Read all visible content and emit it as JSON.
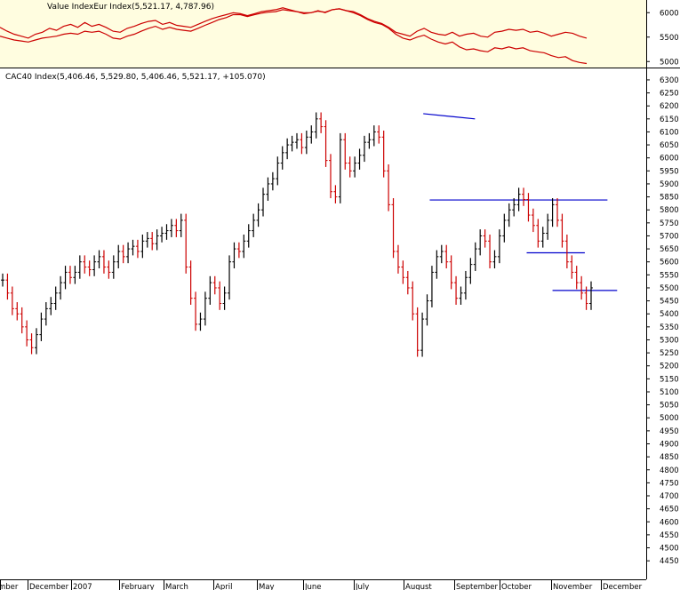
{
  "chart_data": [
    {
      "type": "line",
      "title": "Value IndexEur Index(5,521.17, 4,787.96)",
      "ylim": [
        4950,
        6150
      ],
      "y_ticks": [
        6000,
        5500,
        5000
      ],
      "background": "#fffde0",
      "series": [
        {
          "color": "#cc0000",
          "values": [
            5700,
            5620,
            5560,
            5520,
            5480,
            5560,
            5600,
            5680,
            5640,
            5720,
            5760,
            5700,
            5800,
            5720,
            5760,
            5700,
            5620,
            5600,
            5680,
            5720,
            5780,
            5820,
            5840,
            5760,
            5800,
            5740,
            5720,
            5700,
            5760,
            5820,
            5880,
            5920,
            5960,
            6000,
            5980,
            5940,
            5980,
            6020,
            6040,
            6060,
            6100,
            6060,
            6020,
            5980,
            6000,
            6040,
            6000,
            6060,
            6080,
            6040,
            6020,
            5960,
            5880,
            5820,
            5780,
            5700,
            5600,
            5560,
            5520,
            5620,
            5680,
            5600,
            5560,
            5540,
            5600,
            5520,
            5560,
            5580,
            5520,
            5500,
            5600,
            5620,
            5660,
            5640,
            5660,
            5600,
            5620,
            5580,
            5520,
            5560,
            5600,
            5580,
            5520,
            5480
          ]
        },
        {
          "color": "#cc0000",
          "values": [
            5520,
            5480,
            5440,
            5420,
            5400,
            5440,
            5480,
            5500,
            5520,
            5560,
            5580,
            5560,
            5620,
            5600,
            5620,
            5560,
            5480,
            5460,
            5520,
            5560,
            5620,
            5680,
            5720,
            5660,
            5700,
            5660,
            5640,
            5620,
            5680,
            5740,
            5800,
            5860,
            5900,
            5960,
            5960,
            5920,
            5960,
            5990,
            6010,
            6020,
            6060,
            6040,
            6020,
            6000,
            6000,
            6030,
            6010,
            6060,
            6080,
            6040,
            6000,
            5940,
            5860,
            5800,
            5760,
            5680,
            5560,
            5480,
            5440,
            5500,
            5540,
            5460,
            5400,
            5360,
            5400,
            5300,
            5240,
            5260,
            5220,
            5200,
            5280,
            5260,
            5300,
            5260,
            5280,
            5220,
            5200,
            5180,
            5120,
            5080,
            5100,
            5020,
            4980,
            4960
          ]
        }
      ]
    },
    {
      "type": "candlestick",
      "title": "CAC40 Index(5,406.46, 5,529.80, 5,406.46, 5,521.17, +105.070)",
      "ylim": [
        4430,
        6310
      ],
      "y_ticks": [
        6300,
        6250,
        6200,
        6150,
        6100,
        6050,
        6000,
        5950,
        5900,
        5850,
        5800,
        5750,
        5700,
        5650,
        5600,
        5550,
        5500,
        5450,
        5400,
        5350,
        5300,
        5250,
        5200,
        5150,
        5100,
        5050,
        5000,
        4950,
        4900,
        4850,
        4800,
        4750,
        4700,
        4650,
        4600,
        4550,
        4500,
        4450
      ],
      "x_ticks": [
        "mber",
        "December",
        "2007",
        "February",
        "March",
        "April",
        "May",
        "June",
        "July",
        "August",
        "September",
        "October",
        "November",
        "December"
      ],
      "up_color": "#000000",
      "down_color": "#cc0000",
      "close": [
        5530,
        5480,
        5420,
        5400,
        5350,
        5300,
        5270,
        5320,
        5380,
        5420,
        5440,
        5480,
        5520,
        5560,
        5540,
        5560,
        5600,
        5580,
        5570,
        5600,
        5620,
        5580,
        5560,
        5600,
        5640,
        5620,
        5650,
        5660,
        5640,
        5680,
        5690,
        5670,
        5700,
        5710,
        5720,
        5740,
        5720,
        5760,
        5580,
        5460,
        5360,
        5380,
        5460,
        5520,
        5500,
        5440,
        5480,
        5600,
        5650,
        5640,
        5680,
        5720,
        5760,
        5800,
        5860,
        5900,
        5920,
        5980,
        6020,
        6050,
        6060,
        6070,
        6040,
        6080,
        6100,
        6150,
        6120,
        5990,
        5870,
        5850,
        6070,
        5980,
        5950,
        5980,
        6010,
        6060,
        6070,
        6100,
        6080,
        5950,
        5820,
        5640,
        5580,
        5540,
        5500,
        5400,
        5260,
        5380,
        5450,
        5560,
        5620,
        5640,
        5600,
        5520,
        5460,
        5480,
        5540,
        5590,
        5650,
        5700,
        5680,
        5600,
        5620,
        5700,
        5760,
        5800,
        5820,
        5860,
        5840,
        5780,
        5740,
        5680,
        5710,
        5760,
        5820,
        5760,
        5680,
        5600,
        5560,
        5520,
        5480,
        5440,
        5500
      ]
    }
  ],
  "annotations": {
    "trendline_color": "#0000cc",
    "lines": [
      {
        "x0": 0.655,
        "x1": 0.735,
        "y0": 6170,
        "y1": 6150
      },
      {
        "x0": 0.665,
        "x1": 0.94,
        "y0": 5838,
        "y1": 5838
      },
      {
        "x0": 0.815,
        "x1": 0.905,
        "y0": 5635,
        "y1": 5635
      },
      {
        "x0": 0.855,
        "x1": 0.955,
        "y0": 5490,
        "y1": 5490
      }
    ]
  }
}
